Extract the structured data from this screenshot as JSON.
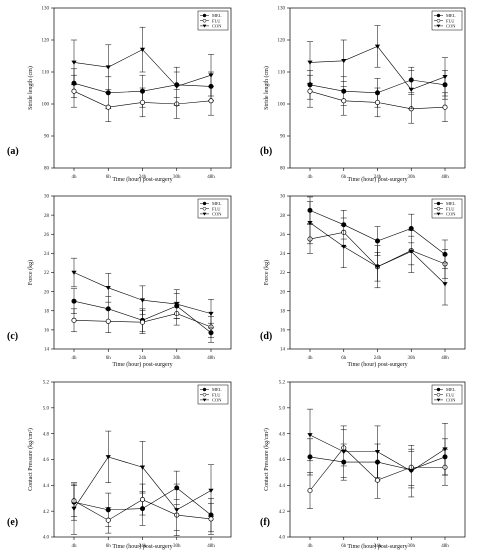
{
  "chart_data": [
    {
      "type": "line",
      "panel": "(a)",
      "ylabel": "Stride length (cm)",
      "xlabel": "Time (hour) post-surgery",
      "categories": [
        "4h",
        "6h",
        "24h",
        "30h",
        "48h"
      ],
      "ylim": [
        80,
        130
      ],
      "yticks": [
        80,
        90,
        100,
        110,
        120,
        130
      ],
      "legend": "top-right",
      "series": [
        {
          "name": "MEL",
          "marker": "filled-circle",
          "values": [
            106.5,
            103.5,
            104,
            106,
            105.5
          ],
          "err": [
            4.5,
            5,
            5,
            4,
            4.5
          ]
        },
        {
          "name": "FLU",
          "marker": "open-circle",
          "values": [
            104,
            99,
            100.5,
            100,
            101
          ],
          "err": [
            5,
            4.5,
            4.5,
            4.5,
            4.5
          ]
        },
        {
          "name": "CON",
          "marker": "filled-triangle",
          "values": [
            113,
            111.5,
            117,
            105.5,
            109
          ],
          "err": [
            7,
            7,
            7,
            6,
            6.5
          ]
        }
      ]
    },
    {
      "type": "line",
      "panel": "(b)",
      "ylabel": "Stride length (cm)",
      "xlabel": "Time (hour) post-surgery",
      "categories": [
        "4h",
        "6h",
        "24h",
        "30h",
        "48h"
      ],
      "ylim": [
        80,
        130
      ],
      "yticks": [
        80,
        90,
        100,
        110,
        120,
        130
      ],
      "legend": "top-right",
      "series": [
        {
          "name": "MEL",
          "marker": "filled-circle",
          "values": [
            106,
            104,
            103.5,
            107.5,
            106
          ],
          "err": [
            4.5,
            4.5,
            4.5,
            4,
            4.5
          ]
        },
        {
          "name": "FLU",
          "marker": "open-circle",
          "values": [
            104,
            101,
            100.5,
            98.5,
            99
          ],
          "err": [
            5,
            4.5,
            4.5,
            4.5,
            4.5
          ]
        },
        {
          "name": "CON",
          "marker": "filled-triangle",
          "values": [
            113,
            113.5,
            118,
            104.5,
            108.5
          ],
          "err": [
            6.5,
            6.5,
            6.5,
            6,
            6
          ]
        }
      ]
    },
    {
      "type": "line",
      "panel": "(c)",
      "ylabel": "Force (kg)",
      "xlabel": "Time (hour) post-surgery",
      "categories": [
        "4h",
        "6h",
        "24h",
        "30h",
        "48h"
      ],
      "ylim": [
        14,
        30
      ],
      "yticks": [
        14,
        16,
        18,
        20,
        22,
        24,
        26,
        28,
        30
      ],
      "legend": "top-right",
      "series": [
        {
          "name": "MEL",
          "marker": "filled-circle",
          "values": [
            19,
            18.2,
            17,
            18.5,
            15.7
          ],
          "err": [
            1.3,
            1.3,
            1.2,
            1.3,
            1
          ]
        },
        {
          "name": "FLU",
          "marker": "open-circle",
          "values": [
            17,
            16.9,
            16.8,
            17.7,
            16.3
          ],
          "err": [
            1.2,
            1.2,
            1.2,
            1.2,
            1.1
          ]
        },
        {
          "name": "CON",
          "marker": "filled-triangle",
          "values": [
            22,
            20.4,
            19.1,
            18.7,
            17.7
          ],
          "err": [
            1.5,
            1.5,
            1.5,
            1.5,
            1.5
          ]
        }
      ]
    },
    {
      "type": "line",
      "panel": "(d)",
      "ylabel": "Force (kg)",
      "xlabel": "Time (hour) post-surgery",
      "categories": [
        "4h",
        "6h",
        "24h",
        "30h",
        "48h"
      ],
      "ylim": [
        14,
        30
      ],
      "yticks": [
        14,
        16,
        18,
        20,
        22,
        24,
        26,
        28,
        30
      ],
      "legend": "top-right",
      "series": [
        {
          "name": "MEL",
          "marker": "filled-circle",
          "values": [
            28.5,
            27,
            25.3,
            26.6,
            23.9
          ],
          "err": [
            1.4,
            1.5,
            1.5,
            1.5,
            1.5
          ]
        },
        {
          "name": "FLU",
          "marker": "open-circle",
          "values": [
            25.5,
            26.2,
            22.6,
            24.3,
            22.9
          ],
          "err": [
            1.5,
            1.5,
            1.5,
            1.5,
            1.5
          ]
        },
        {
          "name": "CON",
          "marker": "filled-triangle",
          "values": [
            27.2,
            24.7,
            22.6,
            24.2,
            20.8
          ],
          "err": [
            2.2,
            2.2,
            2.2,
            2.2,
            2.2
          ]
        }
      ]
    },
    {
      "type": "line",
      "panel": "(e)",
      "ylabel": "Contact Pressure (kg/cm²)",
      "xlabel": "Time (hour) post-surgery",
      "categories": [
        "4h",
        "6h",
        "24h",
        "30h",
        "48h"
      ],
      "ylim": [
        4.0,
        5.2
      ],
      "yticks": [
        "4.0",
        "4.2",
        "4.4",
        "4.6",
        "4.8",
        "5.0",
        "5.2"
      ],
      "legend": "top-right",
      "series": [
        {
          "name": "MEL",
          "marker": "filled-circle",
          "values": [
            4.27,
            4.21,
            4.22,
            4.38,
            4.17
          ],
          "err": [
            0.14,
            0.13,
            0.13,
            0.13,
            0.13
          ]
        },
        {
          "name": "FLU",
          "marker": "open-circle",
          "values": [
            4.28,
            4.13,
            4.29,
            4.17,
            4.14
          ],
          "err": [
            0.12,
            0.1,
            0.12,
            0.12,
            0.12
          ]
        },
        {
          "name": "CON",
          "marker": "filled-triangle",
          "values": [
            4.22,
            4.62,
            4.54,
            4.21,
            4.36
          ],
          "err": [
            0.2,
            0.2,
            0.2,
            0.2,
            0.2
          ]
        }
      ]
    },
    {
      "type": "line",
      "panel": "(f)",
      "ylabel": "Contact Pressure (kg/cm²)",
      "xlabel": "Time (hour) post-surgery",
      "categories": [
        "4h",
        "6h",
        "24h",
        "30h",
        "48h"
      ],
      "ylim": [
        4.0,
        5.2
      ],
      "yticks": [
        "4.0",
        "4.2",
        "4.4",
        "4.6",
        "4.8",
        "5.0",
        "5.2"
      ],
      "legend": "top-right",
      "series": [
        {
          "name": "MEL",
          "marker": "filled-circle",
          "values": [
            4.62,
            4.58,
            4.58,
            4.52,
            4.62
          ],
          "err": [
            0.14,
            0.14,
            0.14,
            0.14,
            0.14
          ]
        },
        {
          "name": "FLU",
          "marker": "open-circle",
          "values": [
            4.36,
            4.69,
            4.44,
            4.54,
            4.54
          ],
          "err": [
            0.14,
            0.14,
            0.14,
            0.14,
            0.14
          ]
        },
        {
          "name": "CON",
          "marker": "filled-triangle",
          "values": [
            4.79,
            4.66,
            4.66,
            4.51,
            4.68
          ],
          "err": [
            0.2,
            0.2,
            0.2,
            0.2,
            0.2
          ]
        }
      ]
    }
  ]
}
